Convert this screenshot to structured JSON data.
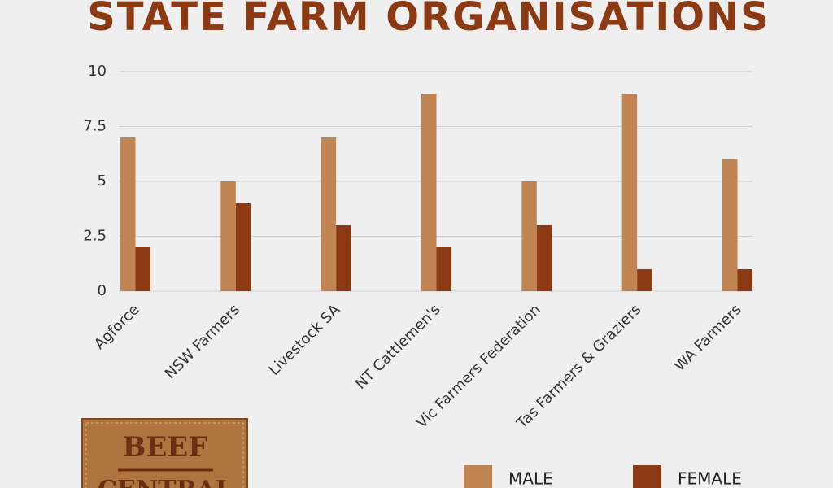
{
  "chart_data": {
    "type": "bar",
    "title": "STATE FARM ORGANISATIONS",
    "categories": [
      "Agforce",
      "NSW Farmers",
      "Livestock SA",
      "NT Cattlemen's",
      "Vic Farmers Federation",
      "Tas Farmers & Graziers",
      "WA Farmers"
    ],
    "series": [
      {
        "name": "MALE",
        "color": "#c08552",
        "values": [
          7,
          5,
          7,
          9,
          5,
          9,
          6
        ]
      },
      {
        "name": "FEMALE",
        "color": "#8b3a14",
        "values": [
          2,
          4,
          3,
          2,
          3,
          1,
          1
        ]
      }
    ],
    "ylim": [
      0,
      10
    ],
    "yticks": [
      0,
      2.5,
      5,
      7.5,
      10
    ],
    "grid": true,
    "legend": "bottom-right"
  },
  "logo": {
    "top": "BEEF",
    "bottom": "CENTRAL"
  }
}
